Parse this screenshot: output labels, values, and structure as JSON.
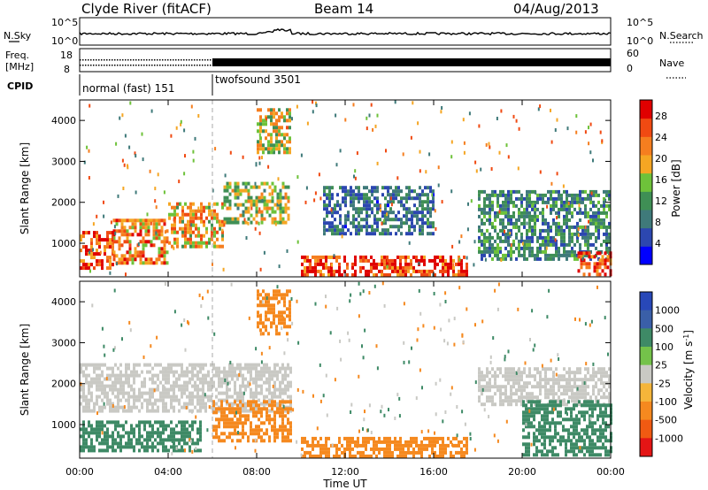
{
  "header": {
    "station": "Clyde River (fitACF)",
    "beam": "Beam 14",
    "date": "04/Aug/2013"
  },
  "noise_panel": {
    "left_label": "N.Sky",
    "left_ticks": [
      "10^5",
      "10^0"
    ],
    "right_ticks": [
      "10^5",
      "10^0"
    ],
    "right_label": "N.Search"
  },
  "freq_panel": {
    "left_label_1": "Freq.",
    "left_label_2": "[MHz]",
    "left_ticks": [
      "18",
      "8"
    ],
    "right_ticks": [
      "60",
      "0"
    ],
    "right_label": "Nave"
  },
  "cpid_panel": {
    "label": "CPID",
    "segments": [
      {
        "name": "normal (fast) 151",
        "start_hour": 0,
        "end_hour": 6
      },
      {
        "name": "twofsound 3501",
        "start_hour": 6,
        "end_hour": 24
      }
    ]
  },
  "colors": {
    "power": [
      "#0000ff",
      "#2c47b0",
      "#3f7a7a",
      "#3f8f55",
      "#6ec23a",
      "#f5a623",
      "#f57e1f",
      "#f04a12",
      "#e00000"
    ],
    "velocity": [
      "#2848b8",
      "#3a5fa8",
      "#3e8a66",
      "#74c24a",
      "#c9c9c4",
      "#f5b53a",
      "#f5891f",
      "#f05a12",
      "#e41515"
    ]
  },
  "chart_data": [
    {
      "type": "heatmap",
      "title": "Power",
      "xlabel": "",
      "ylabel": "Slant Range [km]",
      "xlim": [
        0,
        24
      ],
      "ylim": [
        180,
        4500
      ],
      "yticks": [
        "1000",
        "2000",
        "3000",
        "4000"
      ],
      "xticks": [
        "00:00",
        "04:00",
        "08:00",
        "12:00",
        "16:00",
        "20:00",
        "00:00"
      ],
      "colorbar": {
        "label": "Power [dB]",
        "ticks": [
          "4",
          "8",
          "12",
          "16",
          "20",
          "24",
          "28"
        ],
        "range": [
          0,
          31
        ]
      },
      "regions": [
        {
          "t": [
            0.0,
            1.5
          ],
          "r": [
            350,
            1300
          ],
          "v": 26
        },
        {
          "t": [
            1.5,
            4.0
          ],
          "r": [
            500,
            1600
          ],
          "v": 22
        },
        {
          "t": [
            4.0,
            6.5
          ],
          "r": [
            900,
            2000
          ],
          "v": 20
        },
        {
          "t": [
            6.5,
            9.5
          ],
          "r": [
            1500,
            2500
          ],
          "v": 16
        },
        {
          "t": [
            8.0,
            9.5
          ],
          "r": [
            3200,
            4300
          ],
          "v": 18
        },
        {
          "t": [
            10.0,
            17.5
          ],
          "r": [
            250,
            700
          ],
          "v": 27
        },
        {
          "t": [
            11.0,
            16.0
          ],
          "r": [
            1200,
            2400
          ],
          "v": 8
        },
        {
          "t": [
            18.0,
            24.0
          ],
          "r": [
            600,
            2300
          ],
          "v": 10
        },
        {
          "t": [
            22.5,
            24.0
          ],
          "r": [
            250,
            800
          ],
          "v": 27
        }
      ]
    },
    {
      "type": "heatmap",
      "title": "Velocity",
      "xlabel": "Time UT",
      "ylabel": "Slant Range [km]",
      "xlim": [
        0,
        24
      ],
      "ylim": [
        180,
        4500
      ],
      "yticks": [
        "1000",
        "2000",
        "3000",
        "4000"
      ],
      "xticks": [
        "00:00",
        "04:00",
        "08:00",
        "12:00",
        "16:00",
        "20:00",
        "00:00"
      ],
      "colorbar": {
        "label": "Velocity [m s^-1]",
        "ticks": [
          "1000",
          "500",
          "100",
          "25",
          "-25",
          "-100",
          "-500",
          "-1000"
        ],
        "range": [
          -1200,
          1200
        ]
      },
      "regions": [
        {
          "t": [
            0.0,
            5.5
          ],
          "r": [
            350,
            1100
          ],
          "v": 200
        },
        {
          "t": [
            0.0,
            9.5
          ],
          "r": [
            1300,
            2500
          ],
          "v": 0
        },
        {
          "t": [
            6.0,
            9.5
          ],
          "r": [
            600,
            1600
          ],
          "v": -400
        },
        {
          "t": [
            8.0,
            9.5
          ],
          "r": [
            3200,
            4300
          ],
          "v": -300
        },
        {
          "t": [
            10.0,
            17.5
          ],
          "r": [
            250,
            700
          ],
          "v": -200
        },
        {
          "t": [
            18.0,
            24.0
          ],
          "r": [
            1500,
            2400
          ],
          "v": 0
        },
        {
          "t": [
            20.0,
            24.0
          ],
          "r": [
            300,
            1600
          ],
          "v": 150
        }
      ]
    }
  ]
}
